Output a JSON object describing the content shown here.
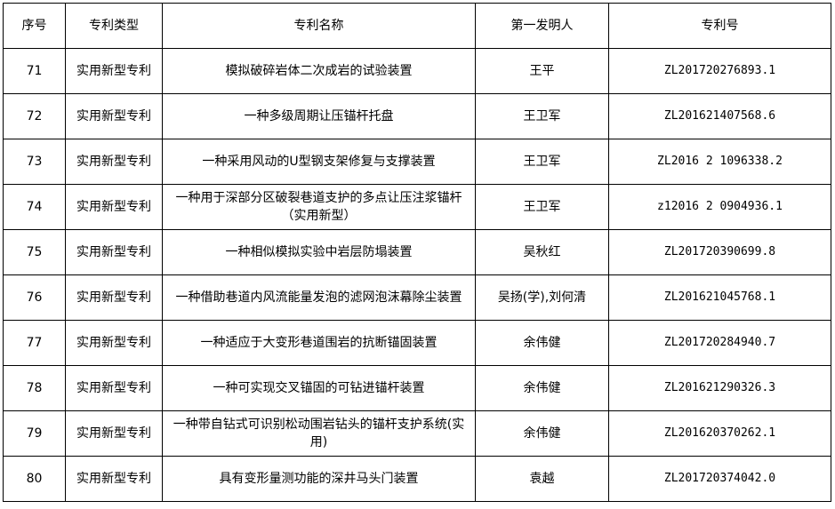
{
  "headers": [
    "序号",
    "专利类型",
    "专利名称",
    "第一发明人",
    "专利号"
  ],
  "rows": [
    {
      "no": "71",
      "type": "实用新型专利",
      "name": "模拟破碎岩体二次成岩的试验装置",
      "inventor": "王平",
      "patent_no": "ZL201720276893.1"
    },
    {
      "no": "72",
      "type": "实用新型专利",
      "name": "一种多级周期让压锚杆托盘",
      "inventor": "王卫军",
      "patent_no": "ZL201621407568.6"
    },
    {
      "no": "73",
      "type": "实用新型专利",
      "name": "一种采用风动的U型钢支架修复与支撑装置",
      "inventor": "王卫军",
      "patent_no": "ZL2016 2 1096338.2"
    },
    {
      "no": "74",
      "type": "实用新型专利",
      "name": "一种用于深部分区破裂巷道支护的多点让压注浆锚杆（实用新型）",
      "inventor": "王卫军",
      "patent_no": "z12016 2 0904936.1"
    },
    {
      "no": "75",
      "type": "实用新型专利",
      "name": "一种相似模拟实验中岩层防塌装置",
      "inventor": "吴秋红",
      "patent_no": "ZL201720390699.8"
    },
    {
      "no": "76",
      "type": "实用新型专利",
      "name": "一种借助巷道内风流能量发泡的滤网泡沫幕除尘装置",
      "inventor": "吴扬(学),刘何清",
      "patent_no": "ZL201621045768.1"
    },
    {
      "no": "77",
      "type": "实用新型专利",
      "name": "一种适应于大变形巷道围岩的抗断锚固装置",
      "inventor": "余伟健",
      "patent_no": "ZL201720284940.7"
    },
    {
      "no": "78",
      "type": "实用新型专利",
      "name": "一种可实现交叉锚固的可钻进锚杆装置",
      "inventor": "余伟健",
      "patent_no": "ZL201621290326.3"
    },
    {
      "no": "79",
      "type": "实用新型专利",
      "name": "一种带自钻式可识别松动围岩钻头的锚杆支护系统(实用)",
      "inventor": "余伟健",
      "patent_no": "ZL201620370262.1"
    },
    {
      "no": "80",
      "type": "实用新型专利",
      "name": "具有变形量测功能的深井马头门装置",
      "inventor": "袁越",
      "patent_no": "ZL201720374042.0"
    }
  ]
}
